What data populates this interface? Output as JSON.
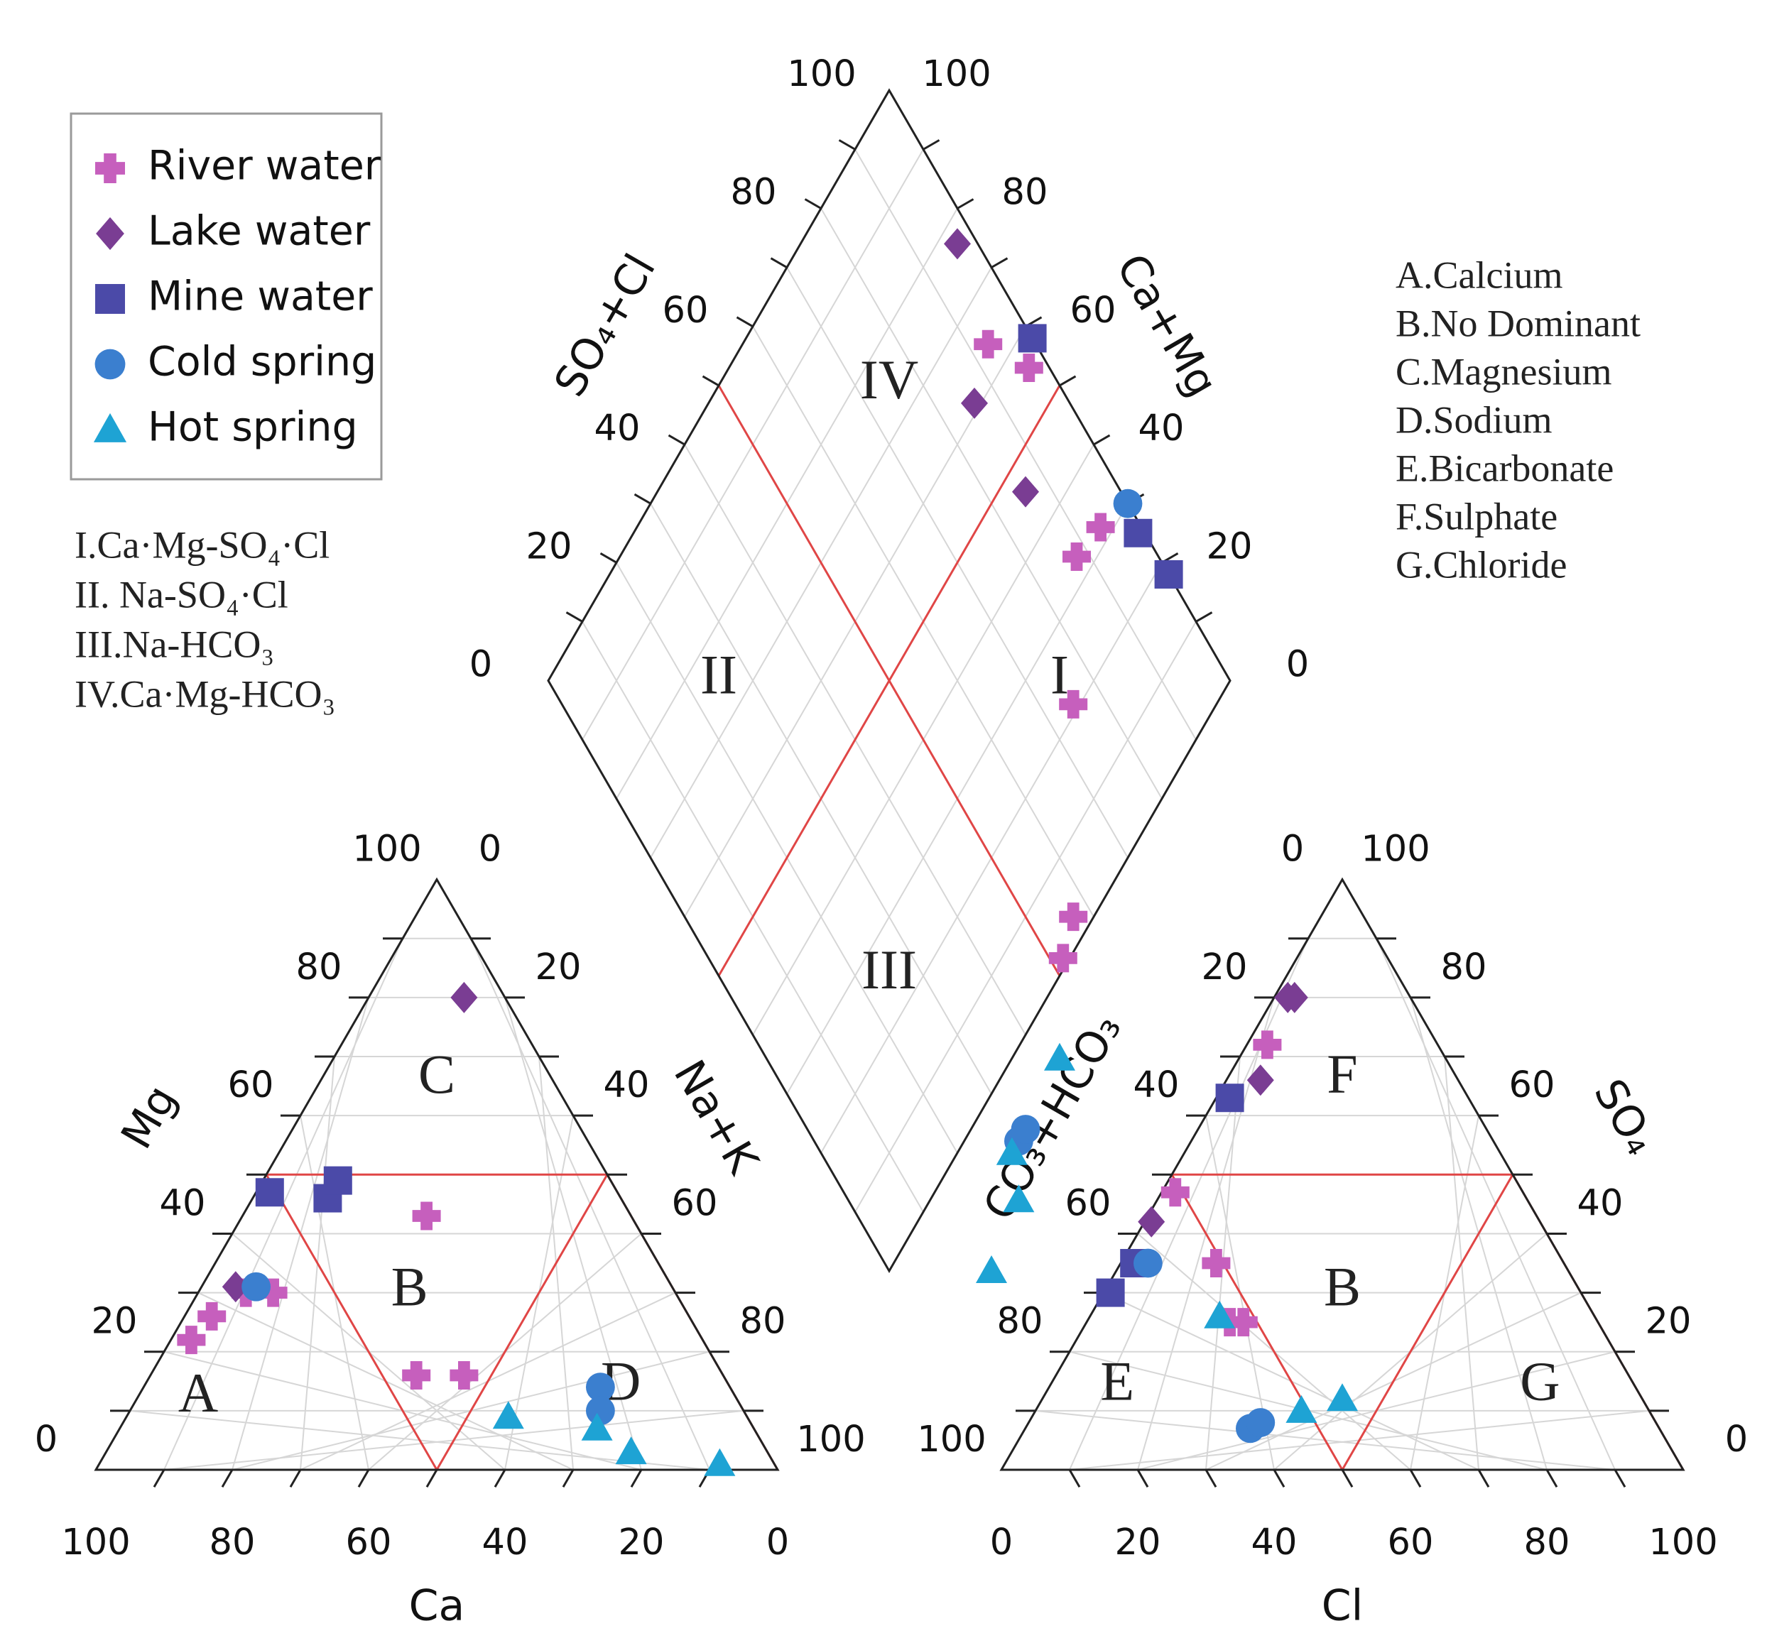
{
  "chart_data": {
    "type": "scatter",
    "subtype": "piper-diagram",
    "legend": {
      "placement": "top-left",
      "entries": [
        {
          "key": "river",
          "label": "River water",
          "marker": "plus",
          "color": "#c65fbd"
        },
        {
          "key": "lake",
          "label": "Lake water",
          "marker": "diamond",
          "color": "#7a3d93"
        },
        {
          "key": "mine",
          "label": "Mine water",
          "marker": "square",
          "color": "#4b4aa8"
        },
        {
          "key": "cold",
          "label": "Cold spring",
          "marker": "circle",
          "color": "#3b7fcf"
        },
        {
          "key": "hot",
          "label": "Hot spring",
          "marker": "triangle",
          "color": "#1ea3d4"
        }
      ]
    },
    "diamond_classes": [
      "I.Ca·Mg-SO₄·Cl",
      "II. Na-SO₄·Cl",
      "III.Na-HCO₃",
      "IV.Ca·Mg-HCO₃"
    ],
    "water_type_codes": [
      "A.Calcium",
      "B.No Dominant",
      "C.Magnesium",
      "D.Sodium",
      "E.Bicarbonate",
      "F.Sulphate",
      "G.Chloride"
    ],
    "ticks": [
      "0",
      "20",
      "40",
      "60",
      "80",
      "100"
    ],
    "cation_triangle": {
      "axes": {
        "bottom": "Ca",
        "left": "Mg",
        "right": "Na+K"
      },
      "zones": [
        "A",
        "B",
        "C",
        "D"
      ],
      "points": [
        {
          "series": "river",
          "Mg": 22,
          "NaK": 3
        },
        {
          "series": "river",
          "Mg": 26,
          "NaK": 4
        },
        {
          "series": "river",
          "Mg": 30,
          "NaK": 11
        },
        {
          "series": "river",
          "Mg": 30,
          "NaK": 7
        },
        {
          "series": "river",
          "Mg": 43,
          "NaK": 27
        },
        {
          "series": "river",
          "Mg": 16,
          "NaK": 39
        },
        {
          "series": "river",
          "Mg": 16,
          "NaK": 46
        },
        {
          "series": "lake",
          "Mg": 31,
          "NaK": 5
        },
        {
          "series": "lake",
          "Mg": 80,
          "NaK": 14
        },
        {
          "series": "mine",
          "Mg": 47,
          "NaK": 2
        },
        {
          "series": "mine",
          "Mg": 46,
          "NaK": 11
        },
        {
          "series": "mine",
          "Mg": 49,
          "NaK": 11
        },
        {
          "series": "cold",
          "Mg": 31,
          "NaK": 8
        },
        {
          "series": "cold",
          "Mg": 14,
          "NaK": 67
        },
        {
          "series": "cold",
          "Mg": 10,
          "NaK": 69
        },
        {
          "series": "hot",
          "Mg": 9,
          "NaK": 56
        },
        {
          "series": "hot",
          "Mg": 7,
          "NaK": 70
        },
        {
          "series": "hot",
          "Mg": 3,
          "NaK": 77
        },
        {
          "series": "hot",
          "Mg": 1,
          "NaK": 91
        }
      ]
    },
    "anion_triangle": {
      "axes": {
        "bottom": "Cl",
        "left": "CO₃+HCO₃",
        "right": "SO₄"
      },
      "zones": [
        "B",
        "E",
        "F",
        "G"
      ],
      "points": [
        {
          "series": "lake",
          "SO4": 80,
          "Cl": 2
        },
        {
          "series": "lake",
          "SO4": 80,
          "Cl": 3
        },
        {
          "series": "lake",
          "SO4": 66,
          "Cl": 5
        },
        {
          "series": "lake",
          "SO4": 42,
          "Cl": 1
        },
        {
          "series": "river",
          "SO4": 72,
          "Cl": 3
        },
        {
          "series": "river",
          "SO4": 47,
          "Cl": 2
        },
        {
          "series": "river",
          "SO4": 35,
          "Cl": 14
        },
        {
          "series": "river",
          "SO4": 25,
          "Cl": 21
        },
        {
          "series": "river",
          "SO4": 25,
          "Cl": 23
        },
        {
          "series": "mine",
          "SO4": 63,
          "Cl": 2
        },
        {
          "series": "mine",
          "SO4": 35,
          "Cl": 2
        },
        {
          "series": "mine",
          "SO4": 30,
          "Cl": 1
        },
        {
          "series": "cold",
          "SO4": 35,
          "Cl": 4
        },
        {
          "series": "cold",
          "SO4": 7,
          "Cl": 33
        },
        {
          "series": "cold",
          "SO4": 8,
          "Cl": 34
        },
        {
          "series": "hot",
          "SO4": 26,
          "Cl": 19
        },
        {
          "series": "hot",
          "SO4": 10,
          "Cl": 39
        },
        {
          "series": "hot",
          "SO4": 12,
          "Cl": 44
        }
      ]
    },
    "diamond": {
      "axes": {
        "upper_left": "SO₄+Cl",
        "upper_right": "Ca+Mg"
      },
      "zones": [
        "I",
        "II",
        "III",
        "IV"
      ],
      "points": [
        {
          "series": "lake",
          "SO4Cl": 77,
          "CaMg": 97
        },
        {
          "series": "lake",
          "SO4Cl": 61,
          "CaMg": 86
        },
        {
          "series": "lake",
          "SO4Cl": 46,
          "CaMg": 86
        },
        {
          "series": "river",
          "SO4Cl": 64,
          "CaMg": 93
        },
        {
          "series": "river",
          "SO4Cl": 56,
          "CaMg": 97
        },
        {
          "series": "river",
          "SO4Cl": 33,
          "CaMg": 88
        },
        {
          "series": "river",
          "SO4Cl": 32,
          "CaMg": 94
        },
        {
          "series": "river",
          "SO4Cl": 21,
          "CaMg": 75
        },
        {
          "series": "river",
          "SO4Cl": 3,
          "CaMg": 57
        },
        {
          "series": "river",
          "SO4Cl": 1,
          "CaMg": 52
        },
        {
          "series": "mine",
          "SO4Cl": 58,
          "CaMg": 100
        },
        {
          "series": "mine",
          "SO4Cl": 26,
          "CaMg": 99
        },
        {
          "series": "mine",
          "SO4Cl": 18,
          "CaMg": 100
        },
        {
          "series": "cold",
          "SO4Cl": 30,
          "CaMg": 100
        },
        {
          "series": "cold",
          "SO4Cl": -8,
          "CaMg": 30
        },
        {
          "series": "cold",
          "SO4Cl": -8,
          "CaMg": 32
        },
        {
          "series": "hot",
          "SO4Cl": -7,
          "CaMg": 43
        },
        {
          "series": "hot",
          "SO4Cl": -8,
          "CaMg": 28
        },
        {
          "series": "hot",
          "SO4Cl": -13,
          "CaMg": 25
        },
        {
          "series": "hot",
          "SO4Cl": -15,
          "CaMg": 15
        }
      ]
    }
  }
}
